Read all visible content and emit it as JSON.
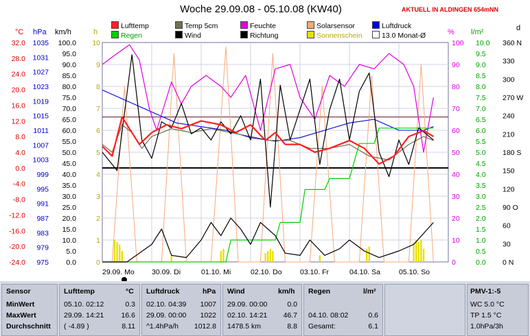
{
  "title": "Woche 29.09.08 - 05.10.08 (KW40)",
  "location": "AKTUELL IN ALDINGEN 654mNN",
  "legend": [
    {
      "label": "Lufttemp",
      "color": "#ff2020"
    },
    {
      "label": "Temp 5cm",
      "color": "#707050"
    },
    {
      "label": "Feuchte",
      "color": "#e000e0"
    },
    {
      "label": "Solarsensor",
      "color": "#f8a878"
    },
    {
      "label": "Luftdruck",
      "color": "#0000e0"
    },
    {
      "label": "Regen",
      "color": "#00d000"
    },
    {
      "label": "Wind",
      "color": "#000000"
    },
    {
      "label": "Richtung",
      "color": "#000000"
    },
    {
      "label": "Sonnenschein",
      "color": "#e8e000"
    },
    {
      "label": "13.0 Monat-Ø",
      "color": "#ffffff"
    }
  ],
  "axis_units": {
    "temp": "°C",
    "pressure": "hPa",
    "wind": "km/h",
    "sun": "h",
    "humidity": "%",
    "rain": "l/m²",
    "direction": "d"
  },
  "chart_data": {
    "type": "line",
    "x_labels": [
      "29.09. Mo",
      "30.09. Di",
      "01.10. Mi",
      "02.10. Do",
      "03.10. Fr",
      "04.10. Sa",
      "05.10. So"
    ],
    "axes": {
      "temp": {
        "ticks": [
          "32.0",
          "28.0",
          "24.0",
          "20.0",
          "16.0",
          "12.0",
          "8.0",
          "4.0",
          "0.0",
          "-4.0",
          "-8.0",
          "-12.0",
          "-16.0",
          "-20.0",
          "-24.0"
        ],
        "range": [
          -24,
          32
        ]
      },
      "pressure": {
        "ticks": [
          "1035",
          "1031",
          "1027",
          "1023",
          "1019",
          "1015",
          "1011",
          "1007",
          "1003",
          "999",
          "995",
          "991",
          "987",
          "983",
          "979",
          "975"
        ],
        "range": [
          975,
          1035
        ]
      },
      "wind": {
        "ticks": [
          "100.0",
          "95.0",
          "90.0",
          "85.0",
          "80.0",
          "75.0",
          "70.0",
          "65.0",
          "60.0",
          "55.0",
          "50.0",
          "45.0",
          "40.0",
          "35.0",
          "30.0",
          "25.0",
          "20.0",
          "15.0",
          "10.0",
          "5.0",
          "0.0"
        ],
        "range": [
          0,
          100
        ]
      },
      "sun": {
        "ticks": [
          "10",
          "9",
          "8",
          "7",
          "6",
          "5",
          "4",
          "3",
          "2",
          "1",
          "0"
        ],
        "range": [
          0,
          10
        ]
      },
      "humidity": {
        "ticks": [
          "100",
          "90",
          "80",
          "70",
          "60",
          "50",
          "40",
          "30",
          "20",
          "10",
          "0"
        ],
        "range": [
          0,
          100
        ]
      },
      "rain": {
        "ticks": [
          "10.0",
          "9.5",
          "9.0",
          "8.5",
          "8.0",
          "7.5",
          "7.0",
          "6.5",
          "6.0",
          "5.5",
          "5.0",
          "4.5",
          "4.0",
          "3.5",
          "3.0",
          "2.5",
          "2.0",
          "1.5",
          "1.0",
          "0.5",
          "0.0"
        ],
        "range": [
          0,
          10
        ]
      },
      "direction": {
        "ticks": [
          "360 N",
          "330",
          "300",
          "270 W",
          "240",
          "210",
          "180 S",
          "150",
          "120",
          "90 O",
          "60",
          "30",
          "0 N"
        ],
        "range": [
          0,
          360
        ]
      }
    },
    "reference_lines": {
      "monthly_mean_temp": 13.0,
      "zero_temp": 0.0
    },
    "series": [
      {
        "name": "Lufttemp",
        "axis": "temp",
        "points": [
          [
            0,
            5.5
          ],
          [
            0.2,
            3
          ],
          [
            0.4,
            13
          ],
          [
            0.55,
            10
          ],
          [
            0.75,
            6
          ],
          [
            1,
            9
          ],
          [
            1.3,
            11
          ],
          [
            1.6,
            10
          ],
          [
            2,
            12
          ],
          [
            2.4,
            11
          ],
          [
            2.7,
            9
          ],
          [
            3,
            11
          ],
          [
            3.3,
            7
          ],
          [
            3.5,
            9
          ],
          [
            3.7,
            6
          ],
          [
            4,
            6
          ],
          [
            4.3,
            4
          ],
          [
            4.6,
            5
          ],
          [
            5,
            7
          ],
          [
            5.3,
            5
          ],
          [
            5.6,
            1
          ],
          [
            5.9,
            3
          ],
          [
            6.2,
            8
          ],
          [
            6.5,
            9.5
          ],
          [
            6.7,
            8
          ]
        ]
      },
      {
        "name": "Temp 5cm",
        "axis": "temp",
        "points": [
          [
            0,
            6
          ],
          [
            0.2,
            4
          ],
          [
            0.4,
            11
          ],
          [
            0.6,
            9
          ],
          [
            0.8,
            5
          ],
          [
            1,
            8
          ],
          [
            1.4,
            10
          ],
          [
            1.8,
            9
          ],
          [
            2.2,
            10
          ],
          [
            2.6,
            9
          ],
          [
            3,
            8
          ],
          [
            3.4,
            7
          ],
          [
            3.8,
            7
          ],
          [
            4.2,
            5
          ],
          [
            4.6,
            5
          ],
          [
            5,
            6
          ],
          [
            5.4,
            3
          ],
          [
            5.8,
            2
          ],
          [
            6.2,
            6
          ],
          [
            6.5,
            8
          ],
          [
            6.7,
            7
          ]
        ]
      },
      {
        "name": "Feuchte",
        "axis": "humidity",
        "points": [
          [
            0,
            90
          ],
          [
            0.3,
            95
          ],
          [
            0.55,
            99
          ],
          [
            0.75,
            92
          ],
          [
            0.95,
            70
          ],
          [
            1.1,
            60
          ],
          [
            1.4,
            82
          ],
          [
            1.6,
            72
          ],
          [
            1.8,
            80
          ],
          [
            2.1,
            85
          ],
          [
            2.4,
            80
          ],
          [
            2.6,
            75
          ],
          [
            2.9,
            85
          ],
          [
            3.2,
            60
          ],
          [
            3.5,
            88
          ],
          [
            3.8,
            90
          ],
          [
            4,
            75
          ],
          [
            4.3,
            65
          ],
          [
            4.6,
            85
          ],
          [
            4.9,
            80
          ],
          [
            5.2,
            90
          ],
          [
            5.5,
            88
          ],
          [
            5.8,
            95
          ],
          [
            6.1,
            90
          ],
          [
            6.3,
            80
          ],
          [
            6.5,
            50
          ],
          [
            6.7,
            75
          ]
        ]
      },
      {
        "name": "Luftdruck",
        "axis": "pressure",
        "points": [
          [
            0,
            1022
          ],
          [
            0.5,
            1019
          ],
          [
            1,
            1016
          ],
          [
            1.5,
            1013
          ],
          [
            2,
            1012
          ],
          [
            2.5,
            1011
          ],
          [
            3,
            1009
          ],
          [
            3.5,
            1008
          ],
          [
            4,
            1009
          ],
          [
            4.5,
            1011
          ],
          [
            5,
            1013
          ],
          [
            5.5,
            1014
          ],
          [
            6,
            1011
          ],
          [
            6.5,
            1011
          ],
          [
            6.7,
            1012
          ]
        ]
      },
      {
        "name": "Regen",
        "axis": "rain",
        "points": [
          [
            0,
            0
          ],
          [
            2.5,
            0
          ],
          [
            2.6,
            1
          ],
          [
            3.5,
            1
          ],
          [
            3.6,
            1.8
          ],
          [
            4,
            1.8
          ],
          [
            4.1,
            3.3
          ],
          [
            4.5,
            3.3
          ],
          [
            4.6,
            3.8
          ],
          [
            5,
            3.8
          ],
          [
            5.2,
            5.4
          ],
          [
            5.5,
            5.4
          ],
          [
            5.6,
            6.1
          ],
          [
            6.7,
            6.1
          ]
        ]
      },
      {
        "name": "Wind",
        "axis": "wind",
        "points": [
          [
            0,
            0
          ],
          [
            0.5,
            0
          ],
          [
            1,
            8
          ],
          [
            1.2,
            15
          ],
          [
            1.4,
            3
          ],
          [
            1.7,
            2
          ],
          [
            2,
            10
          ],
          [
            2.2,
            18
          ],
          [
            2.4,
            12
          ],
          [
            2.6,
            20
          ],
          [
            2.8,
            15
          ],
          [
            3,
            8
          ],
          [
            3.2,
            18
          ],
          [
            3.5,
            12
          ],
          [
            3.7,
            4
          ],
          [
            4,
            3
          ],
          [
            4.2,
            10
          ],
          [
            4.5,
            3
          ],
          [
            4.8,
            6
          ],
          [
            5,
            10
          ],
          [
            5.3,
            5
          ],
          [
            5.6,
            2
          ],
          [
            6,
            5
          ],
          [
            6.3,
            8
          ],
          [
            6.7,
            18
          ]
        ]
      },
      {
        "name": "Richtung",
        "axis": "direction",
        "points": [
          [
            0,
            180
          ],
          [
            0.3,
            150
          ],
          [
            0.6,
            340
          ],
          [
            0.8,
            200
          ],
          [
            1,
            170
          ],
          [
            1.2,
            230
          ],
          [
            1.4,
            220
          ],
          [
            1.6,
            260
          ],
          [
            1.8,
            210
          ],
          [
            2,
            220
          ],
          [
            2.2,
            200
          ],
          [
            2.4,
            230
          ],
          [
            2.6,
            210
          ],
          [
            2.8,
            240
          ],
          [
            3,
            200
          ],
          [
            3.2,
            300
          ],
          [
            3.4,
            90
          ],
          [
            3.6,
            290
          ],
          [
            3.8,
            200
          ],
          [
            4,
            250
          ],
          [
            4.2,
            300
          ],
          [
            4.4,
            160
          ],
          [
            4.6,
            250
          ],
          [
            4.8,
            300
          ],
          [
            5,
            200
          ],
          [
            5.2,
            280
          ],
          [
            5.4,
            310
          ],
          [
            5.6,
            180
          ],
          [
            5.8,
            140
          ],
          [
            6,
            200
          ],
          [
            6.2,
            160
          ],
          [
            6.4,
            220
          ],
          [
            6.7,
            200
          ]
        ]
      },
      {
        "name": "Solarsensor",
        "axis": "humidity",
        "points": [
          [
            0,
            0
          ],
          [
            0.2,
            0
          ],
          [
            0.45,
            80
          ],
          [
            0.7,
            0
          ],
          [
            1.2,
            0
          ],
          [
            1.45,
            95
          ],
          [
            1.7,
            0
          ],
          [
            2.2,
            0
          ],
          [
            2.5,
            98
          ],
          [
            2.75,
            0
          ],
          [
            3.2,
            0
          ],
          [
            3.45,
            95
          ],
          [
            3.7,
            0
          ],
          [
            4.2,
            0
          ],
          [
            4.45,
            80
          ],
          [
            4.7,
            0
          ],
          [
            5.2,
            0
          ],
          [
            5.45,
            85
          ],
          [
            5.7,
            0
          ],
          [
            6.2,
            0
          ],
          [
            6.45,
            90
          ],
          [
            6.7,
            0
          ]
        ]
      },
      {
        "name": "Sonnenschein",
        "axis": "sun",
        "type": "bar",
        "points": [
          [
            0.25,
            1.0
          ],
          [
            0.3,
            0.9
          ],
          [
            0.35,
            0.8
          ],
          [
            0.4,
            0.5
          ],
          [
            1.4,
            0.3
          ],
          [
            2.4,
            0.5
          ],
          [
            2.45,
            0.6
          ],
          [
            3.3,
            0.4
          ],
          [
            3.35,
            0.5
          ],
          [
            3.4,
            0.6
          ],
          [
            3.45,
            0.5
          ],
          [
            4.4,
            0.3
          ],
          [
            5.35,
            0.6
          ],
          [
            5.4,
            0.7
          ],
          [
            6.3,
            0.9
          ],
          [
            6.35,
            1.0
          ],
          [
            6.4,
            0.9
          ],
          [
            6.45,
            1.0
          ],
          [
            6.5,
            0.6
          ]
        ]
      }
    ]
  },
  "table": {
    "sensor": {
      "header": "Sensor",
      "rows": [
        "MinWert",
        "MaxWert",
        "Durchschnitt"
      ]
    },
    "lufttemp": {
      "header": "Lufttemp",
      "unit": "°C",
      "rows": [
        [
          "05.10.  02:12",
          "0.3"
        ],
        [
          "29.09.  14:21",
          "16.6"
        ],
        [
          "( -4.89 )",
          "8.11"
        ]
      ]
    },
    "luftdruck": {
      "header": "Luftdruck",
      "unit": "hPa",
      "rows": [
        [
          "02.10.  04:39",
          "1007"
        ],
        [
          "29.09.  00:00",
          "1022"
        ],
        [
          "^1.4hPa/h",
          "1012.8"
        ]
      ]
    },
    "wind": {
      "header": "Wind",
      "unit": "km/h",
      "rows": [
        [
          "29.09.  00:00",
          "0.0"
        ],
        [
          "02.10.  14:21",
          "46.7"
        ],
        [
          "1478.5 km",
          "8.8"
        ]
      ]
    },
    "regen": {
      "header": "Regen",
      "unit": "l/m²",
      "rows": [
        [
          "",
          ""
        ],
        [
          "04.10.  08:02",
          "0.6"
        ],
        [
          "Gesamt:",
          "6.1"
        ]
      ]
    },
    "pmv": {
      "header": "PMV-1:-5",
      "rows": [
        "WC 5.0 °C",
        "TP 1.5 °C",
        "1.0hPa/3h"
      ]
    }
  }
}
